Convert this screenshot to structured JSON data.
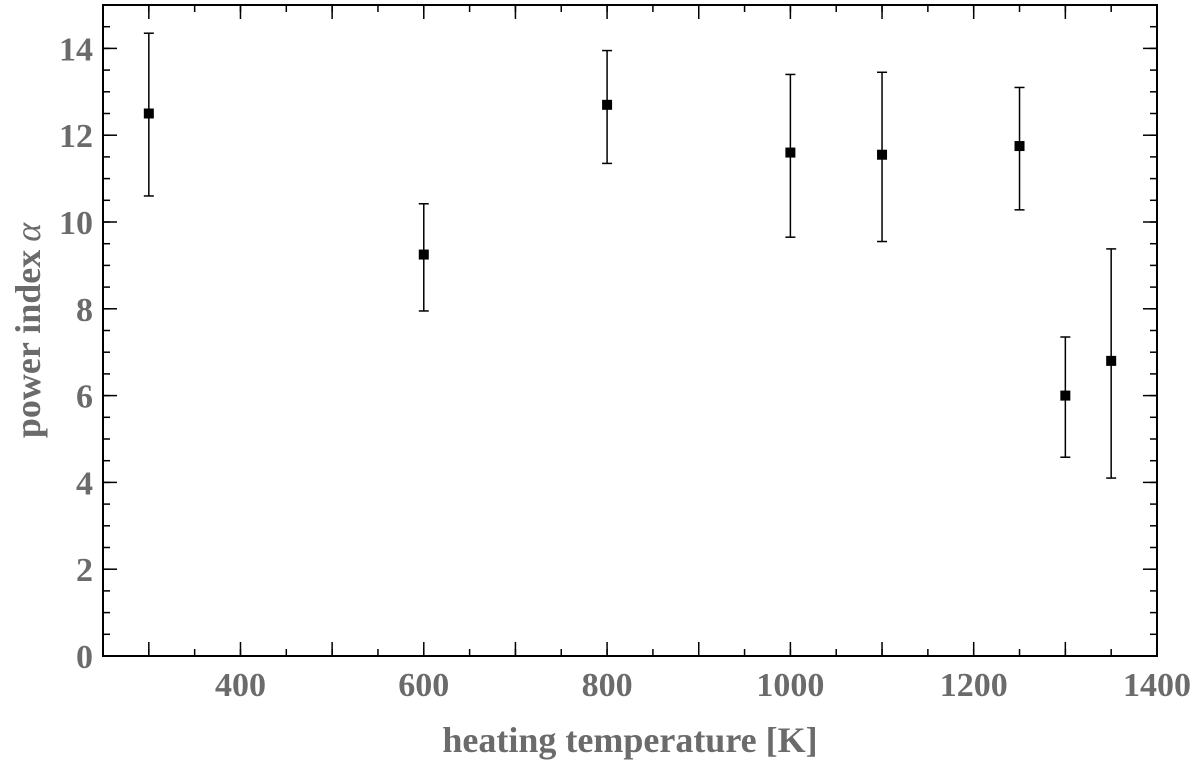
{
  "chart_data": {
    "type": "scatter",
    "xlabel": "heating temperature [K]",
    "ylabel": "power index",
    "ylabel_symbol": "α",
    "xlim": [
      250,
      1400
    ],
    "ylim": [
      0,
      15
    ],
    "x_ticks": [
      400,
      600,
      800,
      1000,
      1200,
      1400
    ],
    "y_ticks": [
      0,
      2,
      4,
      6,
      8,
      10,
      12,
      14
    ],
    "x_minor_step": 50,
    "y_minor_step": 0.5,
    "grid": false,
    "marker": "square",
    "marker_color": "#000000",
    "points": [
      {
        "x": 300,
        "y": 12.5,
        "err_low": 10.6,
        "err_high": 14.35
      },
      {
        "x": 600,
        "y": 9.25,
        "err_low": 7.95,
        "err_high": 10.42
      },
      {
        "x": 800,
        "y": 12.7,
        "err_low": 11.35,
        "err_high": 13.95
      },
      {
        "x": 1000,
        "y": 11.6,
        "err_low": 9.65,
        "err_high": 13.4
      },
      {
        "x": 1100,
        "y": 11.55,
        "err_low": 9.55,
        "err_high": 13.45
      },
      {
        "x": 1250,
        "y": 11.75,
        "err_low": 10.28,
        "err_high": 13.1
      },
      {
        "x": 1300,
        "y": 6.0,
        "err_low": 4.58,
        "err_high": 7.35
      },
      {
        "x": 1350,
        "y": 6.8,
        "err_low": 4.1,
        "err_high": 9.38
      }
    ]
  }
}
